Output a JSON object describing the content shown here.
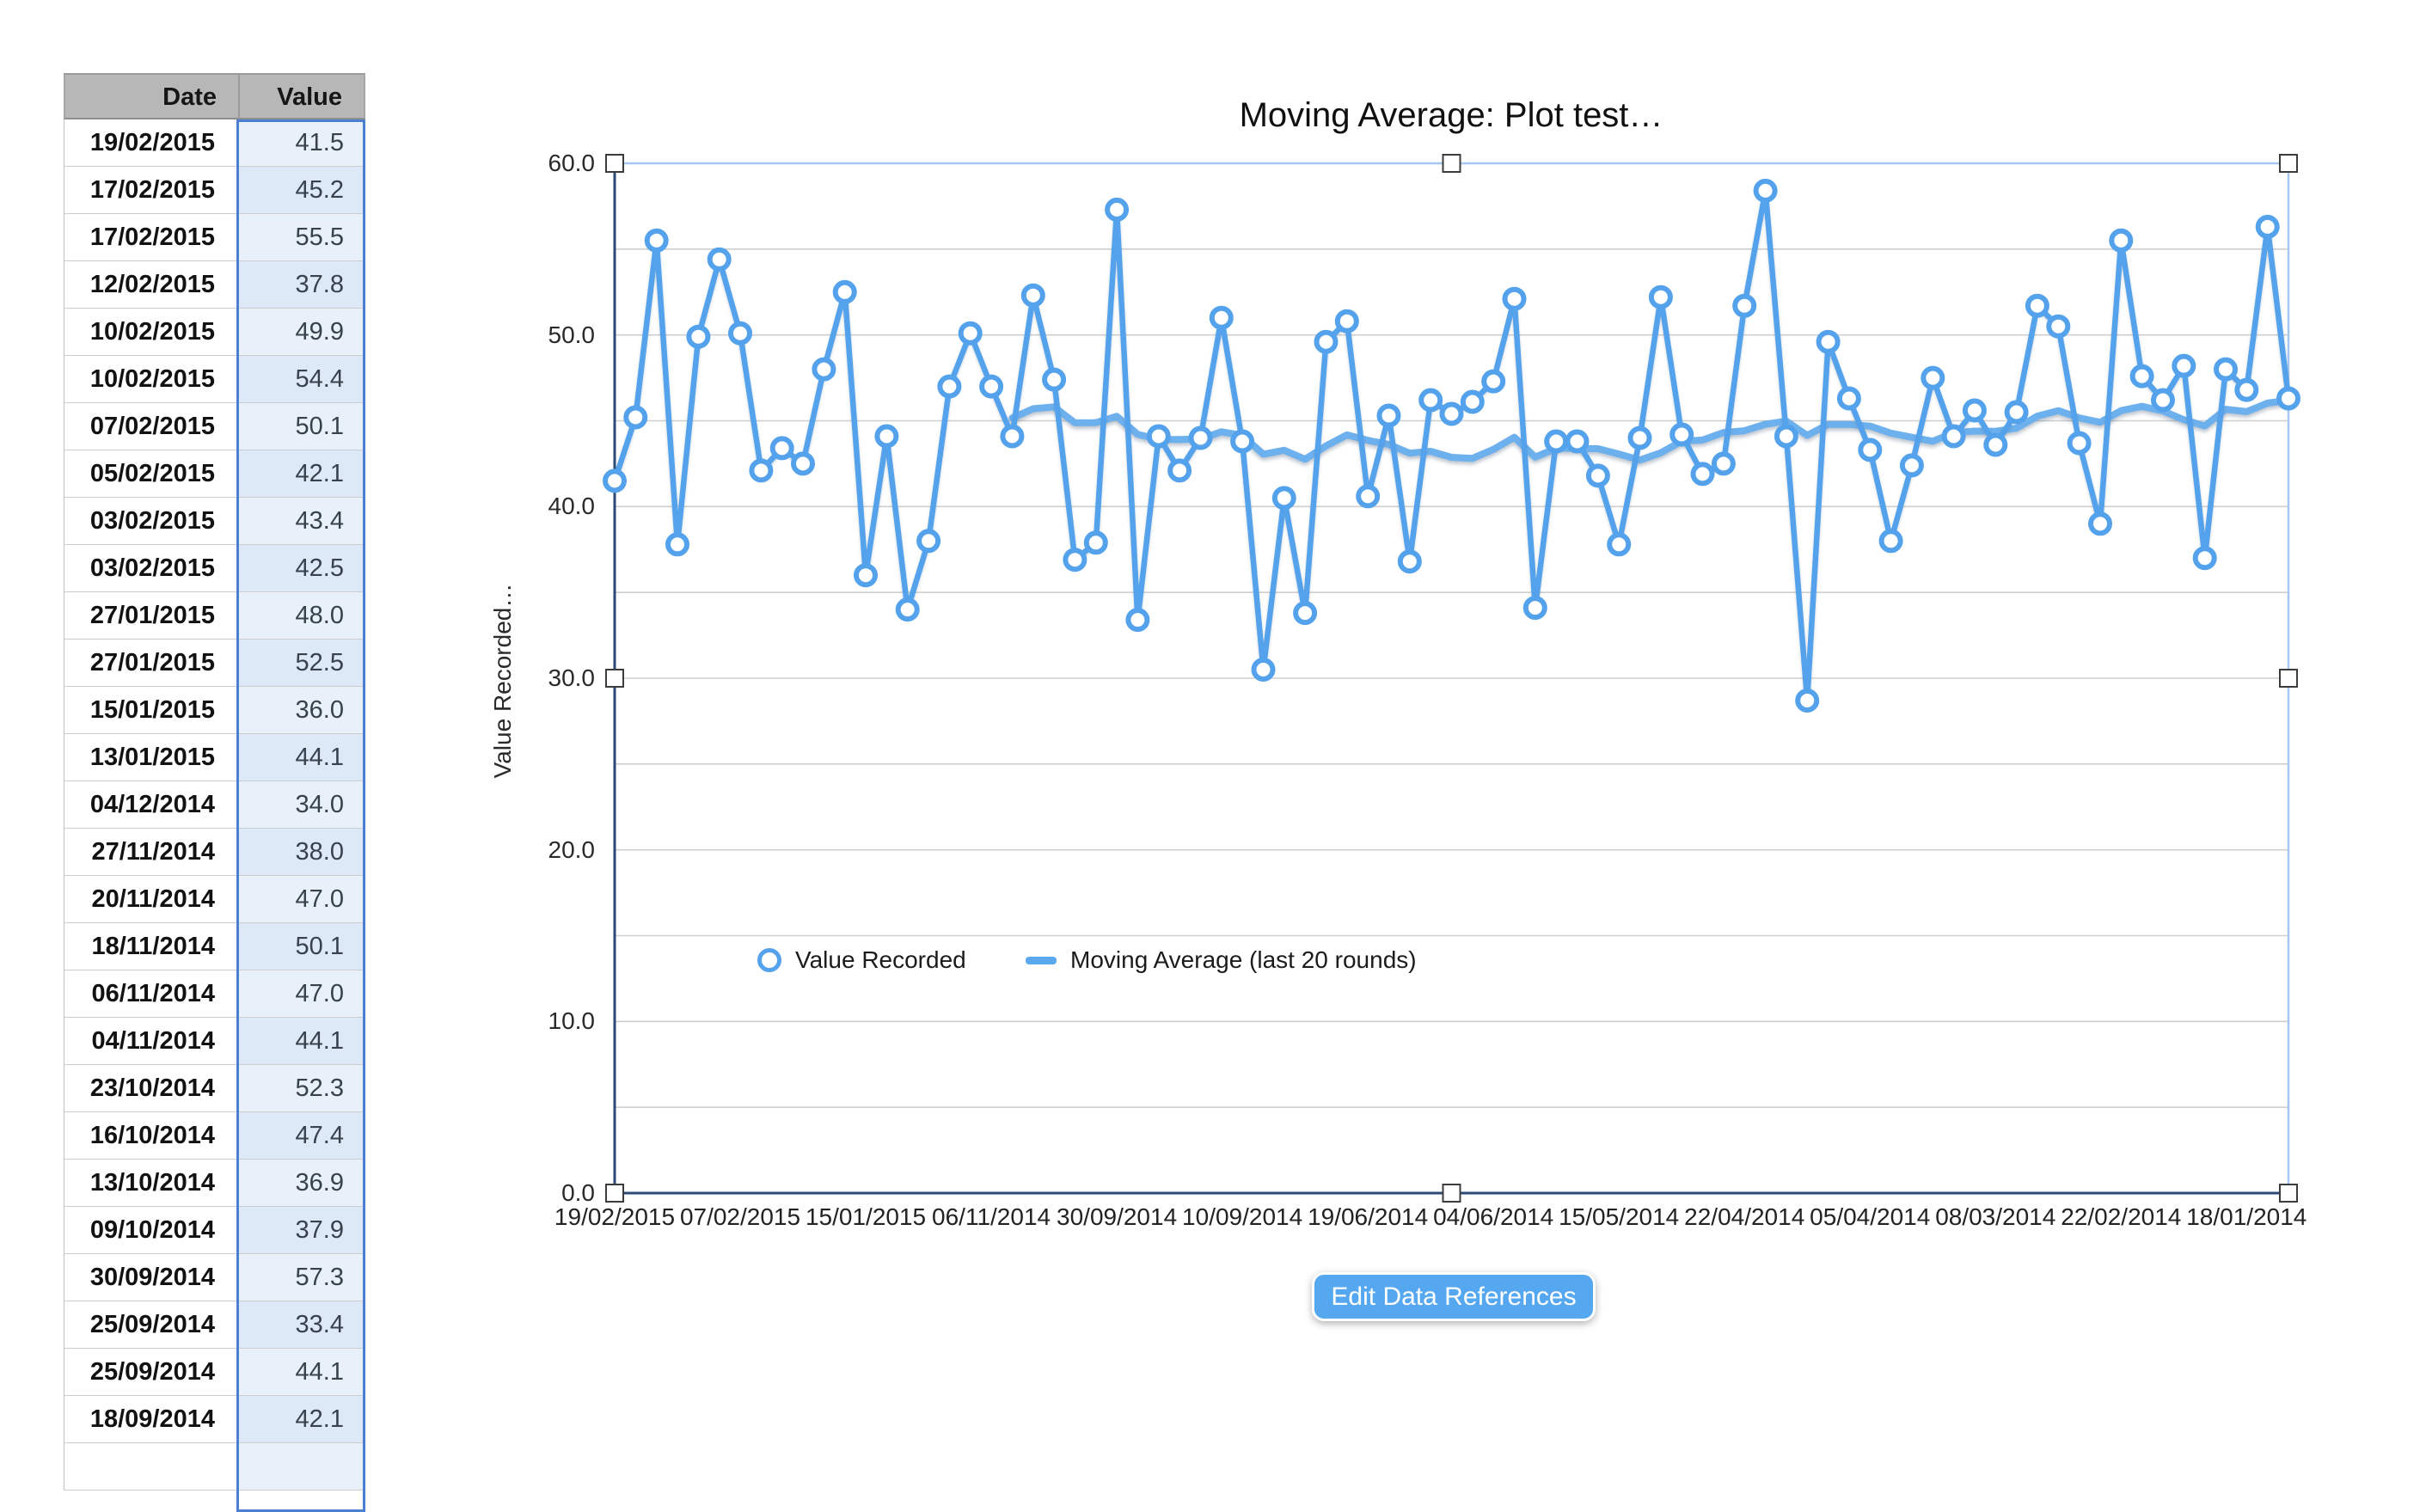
{
  "table": {
    "header": {
      "date": "Date",
      "value": "Value"
    },
    "rows": [
      [
        "19/02/2015",
        "41.5"
      ],
      [
        "17/02/2015",
        "45.2"
      ],
      [
        "17/02/2015",
        "55.5"
      ],
      [
        "12/02/2015",
        "37.8"
      ],
      [
        "10/02/2015",
        "49.9"
      ],
      [
        "10/02/2015",
        "54.4"
      ],
      [
        "07/02/2015",
        "50.1"
      ],
      [
        "05/02/2015",
        "42.1"
      ],
      [
        "03/02/2015",
        "43.4"
      ],
      [
        "03/02/2015",
        "42.5"
      ],
      [
        "27/01/2015",
        "48.0"
      ],
      [
        "27/01/2015",
        "52.5"
      ],
      [
        "15/01/2015",
        "36.0"
      ],
      [
        "13/01/2015",
        "44.1"
      ],
      [
        "04/12/2014",
        "34.0"
      ],
      [
        "27/11/2014",
        "38.0"
      ],
      [
        "20/11/2014",
        "47.0"
      ],
      [
        "18/11/2014",
        "50.1"
      ],
      [
        "06/11/2014",
        "47.0"
      ],
      [
        "04/11/2014",
        "44.1"
      ],
      [
        "23/10/2014",
        "52.3"
      ],
      [
        "16/10/2014",
        "47.4"
      ],
      [
        "13/10/2014",
        "36.9"
      ],
      [
        "09/10/2014",
        "37.9"
      ],
      [
        "30/09/2014",
        "57.3"
      ],
      [
        "25/09/2014",
        "33.4"
      ],
      [
        "25/09/2014",
        "44.1"
      ],
      [
        "18/09/2014",
        "42.1"
      ]
    ]
  },
  "chart": {
    "title": "Moving Average: Plot test…",
    "y_axis_title": "Value Recorded…",
    "legend": {
      "series1": "Value Recorded",
      "series2": "Moving Average (last 20 rounds)"
    }
  },
  "chart_data": {
    "type": "line",
    "title": "Moving Average: Plot test…",
    "xlabel": "",
    "ylabel": "Value Recorded…",
    "ylim": [
      0,
      60
    ],
    "y_ticks": [
      "0.0",
      "10.0",
      "20.0",
      "30.0",
      "40.0",
      "50.0",
      "60.0"
    ],
    "grid": "horizontal gridlines every 5 units",
    "legend_position": "inside lower-left",
    "x_tick_labels": [
      "19/02/2015",
      "07/02/2015",
      "15/01/2015",
      "06/11/2014",
      "30/09/2014",
      "10/09/2014",
      "19/06/2014",
      "04/06/2014",
      "15/05/2014",
      "22/04/2014",
      "05/04/2014",
      "08/03/2014",
      "22/02/2014",
      "18/01/2014"
    ],
    "x_tick_point_indices": [
      0,
      6,
      12,
      18,
      24,
      30,
      36,
      42,
      48,
      54,
      60,
      66,
      72,
      78
    ],
    "series": [
      {
        "name": "Value Recorded",
        "style": "line with open circle markers",
        "values": [
          41.5,
          45.2,
          55.5,
          37.8,
          49.9,
          54.4,
          50.1,
          42.1,
          43.4,
          42.5,
          48.0,
          52.5,
          36.0,
          44.1,
          34.0,
          38.0,
          47.0,
          50.1,
          47.0,
          44.1,
          52.3,
          47.4,
          36.9,
          37.9,
          57.3,
          33.4,
          44.1,
          42.1,
          44.0,
          51.0,
          43.8,
          30.5,
          40.5,
          33.8,
          49.6,
          50.8,
          40.6,
          45.3,
          36.8,
          46.2,
          45.4,
          46.1,
          47.3,
          52.1,
          34.1,
          43.8,
          43.8,
          41.8,
          37.8,
          44.0,
          52.2,
          44.2,
          41.9,
          42.5,
          51.7,
          58.4,
          44.1,
          28.7,
          49.6,
          46.3,
          43.3,
          38.0,
          42.4,
          47.5,
          44.1,
          45.6,
          43.6,
          45.5,
          51.7,
          50.5,
          43.7,
          39.0,
          55.5,
          47.6,
          46.2,
          48.2,
          37.0,
          48.0,
          46.8,
          56.3,
          46.3
        ]
      },
      {
        "name": "Moving Average (last 20 rounds)",
        "style": "smooth line, no markers",
        "values": [
          null,
          null,
          null,
          null,
          null,
          null,
          null,
          null,
          null,
          null,
          null,
          null,
          null,
          null,
          null,
          null,
          null,
          null,
          null,
          45.16,
          45.7,
          45.81,
          44.88,
          44.89,
          45.26,
          44.21,
          43.91,
          43.91,
          43.94,
          44.36,
          44.15,
          43.05,
          43.28,
          42.76,
          43.54,
          44.18,
          43.86,
          43.62,
          43.11,
          43.22,
          42.87,
          42.81,
          43.33,
          44.04,
          42.88,
          43.4,
          43.38,
          43.37,
          43.06,
          42.71,
          43.13,
          43.81,
          43.88,
          44.32,
          44.42,
          44.8,
          44.98,
          44.15,
          44.79,
          44.79,
          44.69,
          44.28,
          44.04,
          43.81,
          44.31,
          44.4,
          44.39,
          44.57,
          45.27,
          45.59,
          45.17,
          44.91,
          45.59,
          45.84,
          45.57,
          45.06,
          44.7,
          45.67,
          45.53,
          46.03,
          46.18
        ]
      }
    ]
  },
  "actions": {
    "edit_data_references": "Edit Data References"
  },
  "colors": {
    "series_blue": "#54a2eb",
    "moving_average_blue": "#6cb0ee",
    "column_selection_blue": "#4a7fd2",
    "value_cell_tint": "#e8f0fa",
    "value_cell_tint_alt": "#dde9f7",
    "header_gray": "#b7b7b7",
    "grid_gray": "#cfcfcf",
    "axis_navy": "#2c4a76",
    "selection_frame_blue": "#a6c7ef",
    "button_blue": "#55a7f0"
  }
}
